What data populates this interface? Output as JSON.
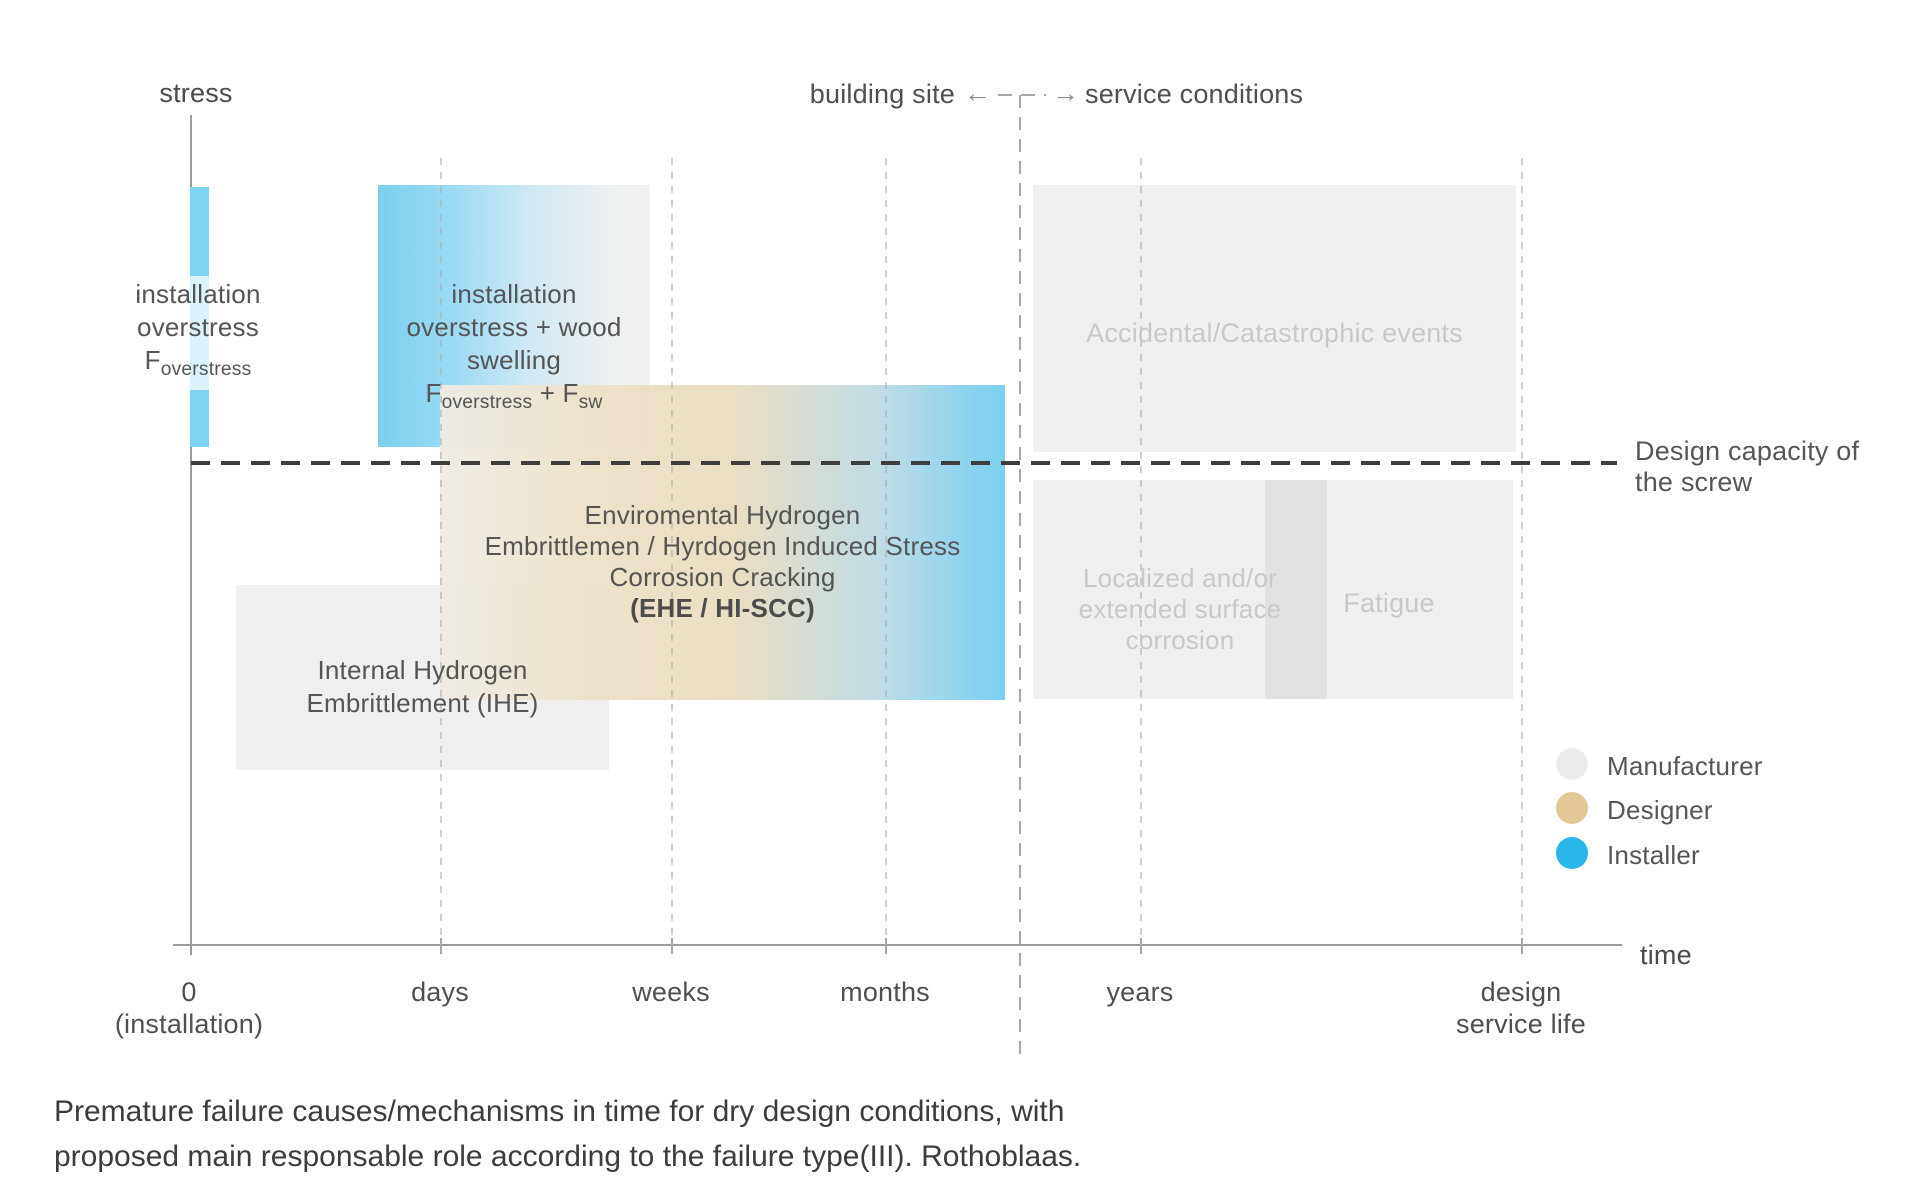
{
  "axes": {
    "y_title": "stress",
    "x_title": "time",
    "x_ticks": [
      {
        "label": "0",
        "sublabel": "(installation)"
      },
      {
        "label": "days"
      },
      {
        "label": "weeks"
      },
      {
        "label": "months"
      },
      {
        "label": "years"
      },
      {
        "label": "design",
        "sublabel": "service life"
      }
    ]
  },
  "header": {
    "left": "building site",
    "right": "service conditions",
    "arrow_left": "←",
    "arrow_right": "→"
  },
  "capacity_label": {
    "line1": "Design capacity of",
    "line2": "the screw"
  },
  "boxes": {
    "installation_overstress": {
      "lines": [
        "installation",
        "overstress"
      ],
      "formula": {
        "base": "F",
        "sub": "overstress"
      }
    },
    "overstress_swelling": {
      "lines": [
        "installation",
        "overstress + wood",
        "swelling"
      ],
      "formula": {
        "base1": "F",
        "sub1": "overstress",
        "joiner": " + ",
        "base2": "F",
        "sub2": "sw"
      }
    },
    "ehe": {
      "lines": [
        "Enviromental Hydrogen",
        "Embrittlemen / Hyrdogen Induced Stress",
        "Corrosion Cracking"
      ],
      "bold_line": "(EHE / HI-SCC)"
    },
    "ihe": {
      "lines": [
        "Internal Hydrogen",
        "Embrittlement (IHE)"
      ]
    },
    "accidental": {
      "lines": [
        "Accidental/Catastrophic events"
      ]
    },
    "corrosion": {
      "lines": [
        "Localized and/or",
        "extended surface",
        "corrosion"
      ]
    },
    "fatigue": {
      "lines": [
        "Fatigue"
      ]
    }
  },
  "legend": {
    "items": [
      {
        "label": "Manufacturer",
        "color": "#ececec"
      },
      {
        "label": "Designer",
        "color": "#e4c998"
      },
      {
        "label": "Installer",
        "color": "#29b7ea"
      }
    ]
  },
  "caption": {
    "line1": "Premature failure causes/mechanisms in time for dry design conditions, with",
    "line2": "proposed main responsable role according to the failure type(III). Rothoblaas."
  },
  "colors": {
    "installer_blue_fill": "#7ed4f2",
    "designer_tan_fill": "#e9dcc0",
    "manufacturer_gray_fill": "#efefef",
    "gray_box_text": "#c8c8c8",
    "capacity_line": "#3e3e3e",
    "axis": "#9b9b9b"
  }
}
